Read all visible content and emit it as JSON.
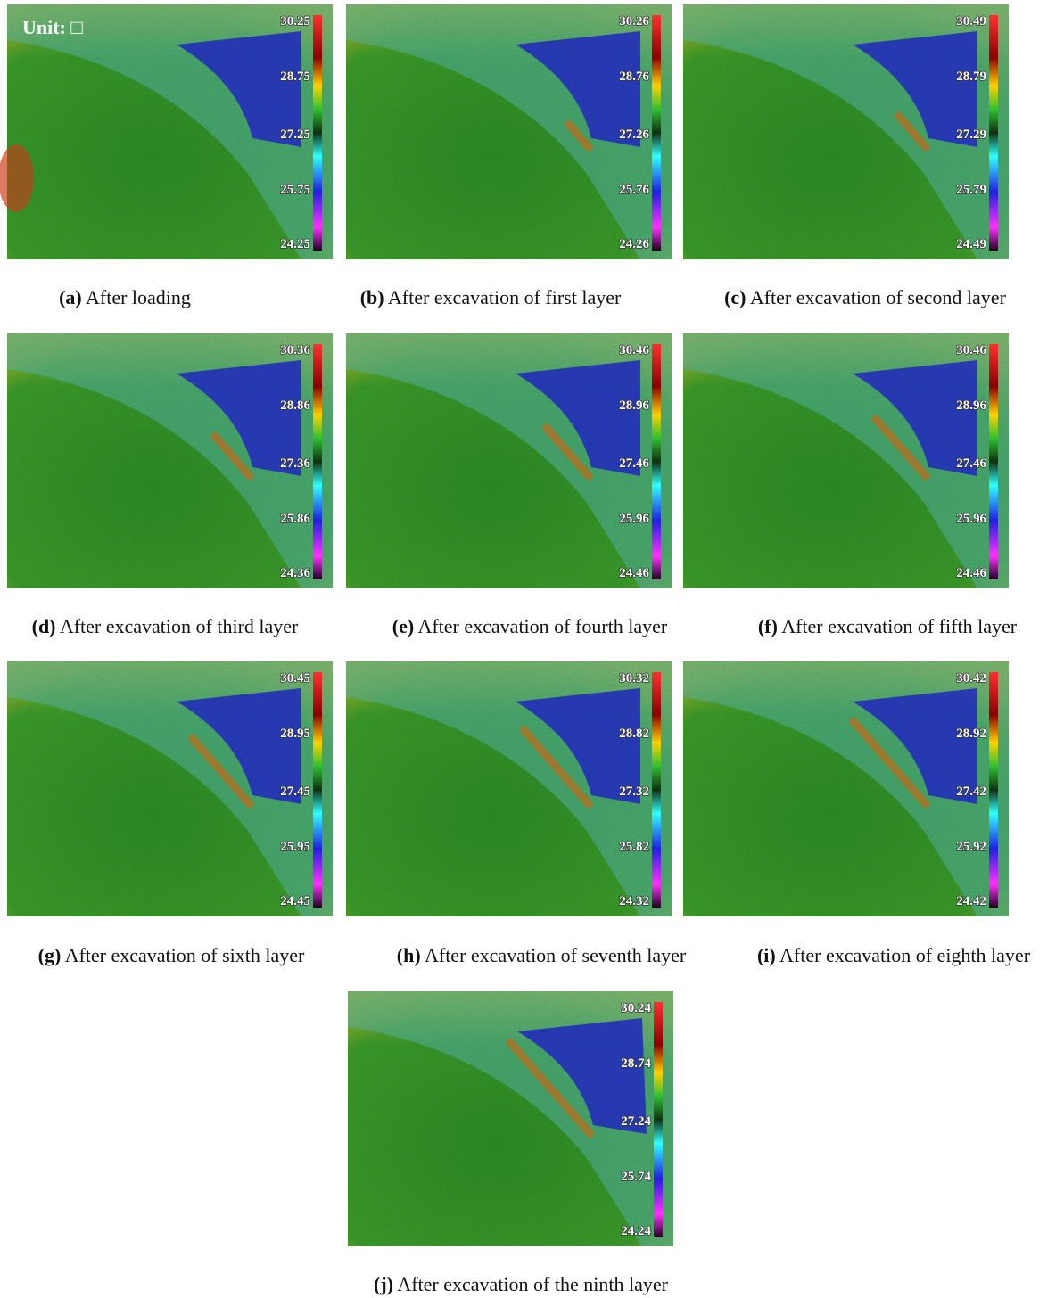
{
  "unit_label": "Unit: □",
  "panels": [
    {
      "label": "(a)",
      "caption": "After loading",
      "scale": [
        "30.25",
        "28.75",
        "27.25",
        "25.75",
        "24.25"
      ]
    },
    {
      "label": "(b)",
      "caption": "After excavation of first layer",
      "scale": [
        "30.26",
        "28.76",
        "27.26",
        "25.76",
        "24.26"
      ]
    },
    {
      "label": "(c)",
      "caption": "After excavation of second layer",
      "scale": [
        "30.49",
        "28.79",
        "27.29",
        "25.79",
        "24.49"
      ]
    },
    {
      "label": "(d)",
      "caption": "After excavation of third layer",
      "scale": [
        "30.36",
        "28.86",
        "27.36",
        "25.86",
        "24.36"
      ]
    },
    {
      "label": "(e)",
      "caption": "After excavation of fourth layer",
      "scale": [
        "30.46",
        "28.96",
        "27.46",
        "25.96",
        "24.46"
      ]
    },
    {
      "label": "(f)",
      "caption": "After excavation of fifth layer",
      "scale": [
        "30.46",
        "28.96",
        "27.46",
        "25.96",
        "24.46"
      ]
    },
    {
      "label": "(g)",
      "caption": "After excavation of sixth layer",
      "scale": [
        "30.45",
        "28.95",
        "27.45",
        "25.95",
        "24.45"
      ]
    },
    {
      "label": "(h)",
      "caption": "After excavation of seventh layer",
      "scale": [
        "30.32",
        "28.82",
        "27.32",
        "25.82",
        "24.32"
      ]
    },
    {
      "label": "(i)",
      "caption": "After excavation of eighth layer",
      "scale": [
        "30.42",
        "28.92",
        "27.42",
        "25.92",
        "24.42"
      ]
    },
    {
      "label": "(j)",
      "caption": "After excavation of the ninth layer",
      "scale": [
        "30.24",
        "28.74",
        "27.24",
        "25.74",
        "24.24"
      ]
    }
  ]
}
